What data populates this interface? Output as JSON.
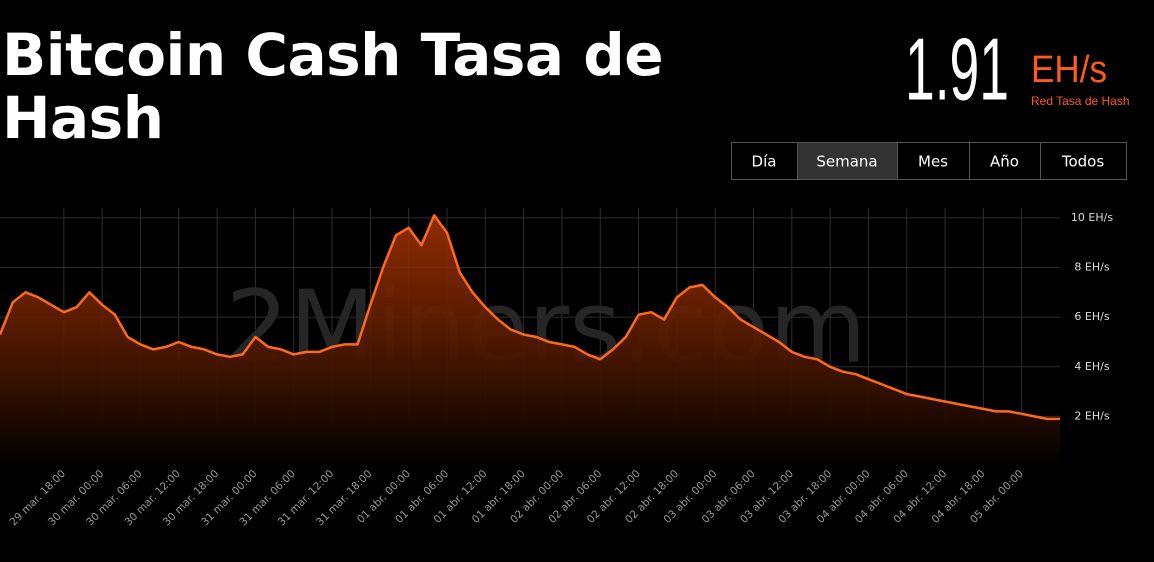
{
  "header": {
    "title": "Bitcoin Cash Tasa de Hash",
    "hashrate": "1.91",
    "unit": "EH/s",
    "hashrate_label": "Red Tasa de Hash"
  },
  "range_buttons": [
    "Día",
    "Semana",
    "Mes",
    "Año",
    "Todos"
  ],
  "selected_range": 1,
  "watermark": "2Miners.com",
  "chart_data": {
    "type": "area",
    "color": "#ff6a1a",
    "categories": [
      null,
      null,
      null,
      null,
      null,
      "29 mar. 18:00",
      null,
      null,
      "30 mar. 00:00",
      null,
      null,
      "30 mar. 06:00",
      null,
      null,
      "30 mar. 12:00",
      null,
      null,
      "30 mar. 18:00",
      null,
      null,
      "31 mar. 00:00",
      null,
      null,
      "31 mar. 06:00",
      null,
      null,
      "31 mar. 12:00",
      null,
      null,
      "31 mar. 18:00",
      null,
      null,
      "01 abr. 00:00",
      null,
      null,
      "01 abr. 06:00",
      null,
      null,
      "01 abr. 12:00",
      null,
      null,
      "01 abr. 18:00",
      null,
      null,
      "02 abr. 00:00",
      null,
      null,
      "02 abr. 06:00",
      null,
      null,
      "02 abr. 12:00",
      null,
      null,
      "02 abr. 18:00",
      null,
      null,
      "03 abr. 00:00",
      null,
      null,
      "03 abr. 06:00",
      null,
      null,
      "03 abr. 12:00",
      null,
      null,
      "03 abr. 18:00",
      null,
      null,
      "04 abr. 00:00",
      null,
      null,
      "04 abr. 06:00",
      null,
      null,
      "04 abr. 12:00",
      null,
      null,
      "04 abr. 18:00",
      null,
      null,
      "05 abr. 00:00",
      null,
      null,
      null
    ],
    "values": [
      5.3,
      6.6,
      7.0,
      6.8,
      6.5,
      6.2,
      6.4,
      7.0,
      6.5,
      6.1,
      5.2,
      4.9,
      4.7,
      4.8,
      5.0,
      4.8,
      4.7,
      4.5,
      4.4,
      4.5,
      5.2,
      4.8,
      4.7,
      4.5,
      4.6,
      4.6,
      4.8,
      4.9,
      4.9,
      6.5,
      8.0,
      9.3,
      9.6,
      8.9,
      10.1,
      9.4,
      7.8,
      7.0,
      6.4,
      5.9,
      5.5,
      5.3,
      5.2,
      5.0,
      4.9,
      4.8,
      4.5,
      4.3,
      4.7,
      5.2,
      6.1,
      6.2,
      5.9,
      6.8,
      7.2,
      7.3,
      6.8,
      6.4,
      5.9,
      5.6,
      5.3,
      5.0,
      4.6,
      4.4,
      4.3,
      4.0,
      3.8,
      3.7,
      3.5,
      3.3,
      3.1,
      2.9,
      2.8,
      2.7,
      2.6,
      2.5,
      2.4,
      2.3,
      2.2,
      2.2,
      2.1,
      2.0,
      1.9,
      1.9
    ],
    "ylim": [
      0,
      10.4
    ],
    "yticks": [
      {
        "value": 2,
        "label": "2 EH/s"
      },
      {
        "value": 4,
        "label": "4 EH/s"
      },
      {
        "value": 6,
        "label": "6 EH/s"
      },
      {
        "value": 8,
        "label": "8 EH/s"
      },
      {
        "value": 10,
        "label": "10 EH/s"
      }
    ],
    "grid": true
  }
}
